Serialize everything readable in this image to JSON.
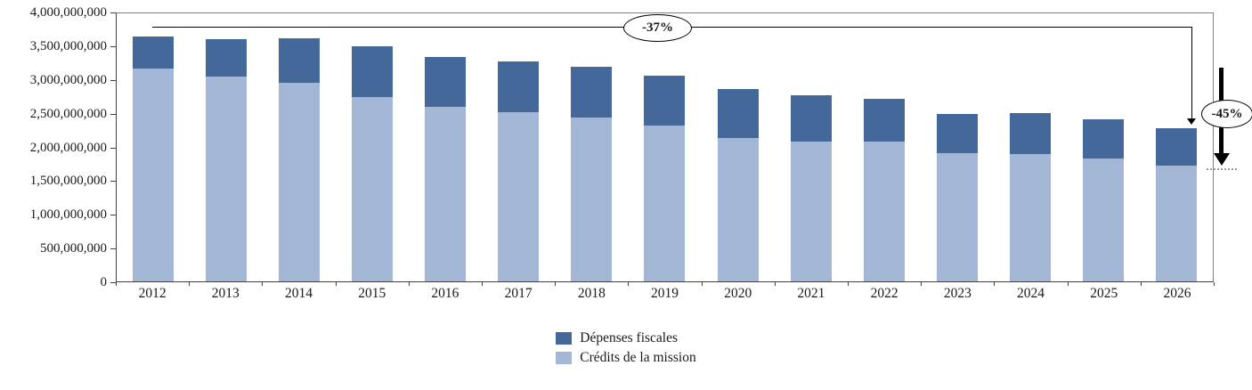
{
  "chart_data": {
    "type": "bar",
    "stacked": true,
    "title": "",
    "xlabel": "",
    "ylabel": "",
    "categories": [
      "2012",
      "2013",
      "2014",
      "2015",
      "2016",
      "2017",
      "2018",
      "2019",
      "2020",
      "2021",
      "2022",
      "2023",
      "2024",
      "2025",
      "2026"
    ],
    "series": [
      {
        "name": "Crédits de la mission",
        "color": "#A4B6D6",
        "values": [
          3170000000,
          3060000000,
          2970000000,
          2745000000,
          2600000000,
          2530000000,
          2450000000,
          2320000000,
          2140000000,
          2080000000,
          2080000000,
          1920000000,
          1900000000,
          1840000000,
          1730000000
        ]
      },
      {
        "name": "Dépenses fiscales",
        "color": "#45689B",
        "values": [
          490000000,
          550000000,
          660000000,
          760000000,
          750000000,
          750000000,
          750000000,
          750000000,
          730000000,
          700000000,
          645000000,
          585000000,
          615000000,
          580000000,
          550000000
        ]
      }
    ],
    "ylim": [
      0,
      4000000000
    ],
    "y_ticks": [
      {
        "value": 4000000000,
        "label": "4,000,000,000"
      },
      {
        "value": 3500000000,
        "label": "3,500,000,000"
      },
      {
        "value": 3000000000,
        "label": "3,000,000,000"
      },
      {
        "value": 2500000000,
        "label": "2,500,000,000"
      },
      {
        "value": 2000000000,
        "label": "2,000,000,000"
      },
      {
        "value": 1500000000,
        "label": "1,500,000,000"
      },
      {
        "value": 1000000000,
        "label": "1,000,000,000"
      },
      {
        "value": 500000000,
        "label": "500,000,000"
      },
      {
        "value": 0,
        "label": "0"
      }
    ],
    "grid": "plot-border-only",
    "legend": {
      "position": "bottom-center",
      "order": [
        "Dépenses fiscales",
        "Crédits de la mission"
      ]
    },
    "annotations": [
      {
        "label": "-37%"
      },
      {
        "label": "-45%"
      }
    ]
  }
}
